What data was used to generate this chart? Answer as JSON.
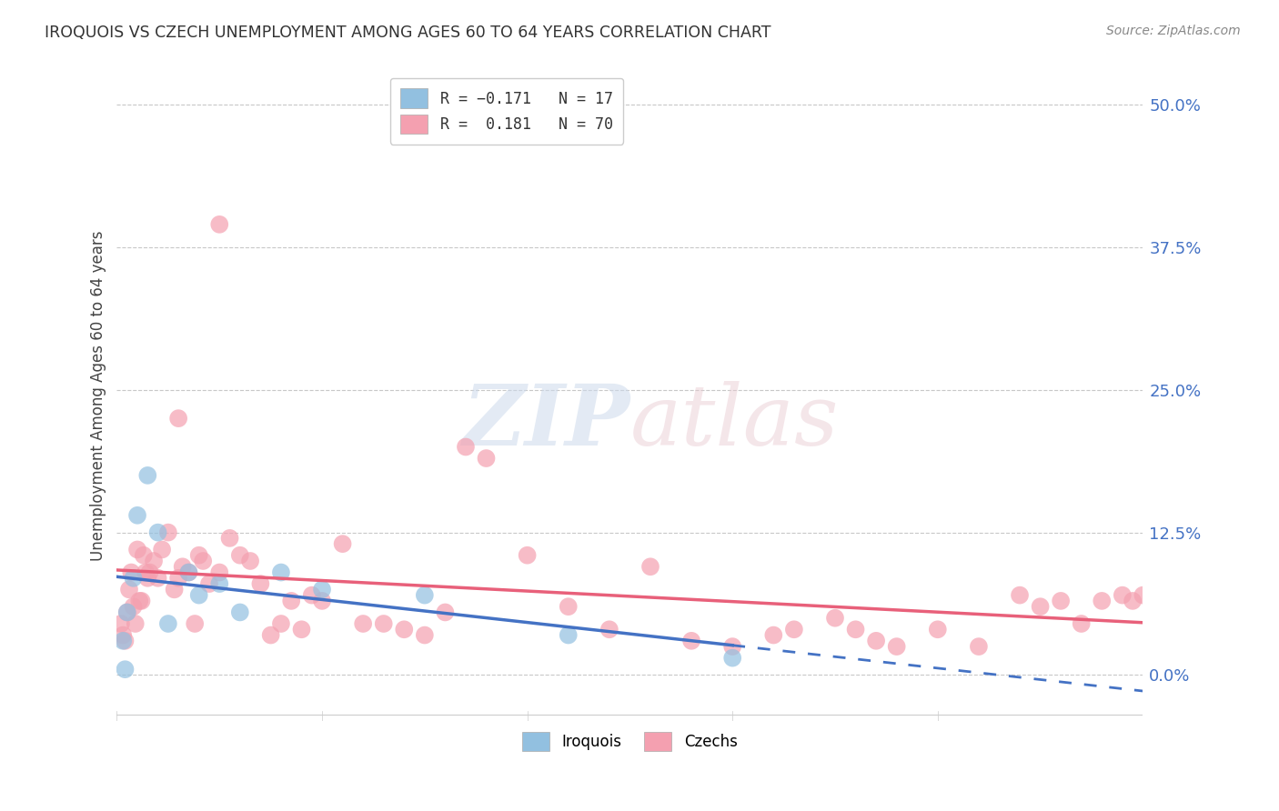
{
  "title": "IROQUOIS VS CZECH UNEMPLOYMENT AMONG AGES 60 TO 64 YEARS CORRELATION CHART",
  "source": "Source: ZipAtlas.com",
  "ylabel": "Unemployment Among Ages 60 to 64 years",
  "ytick_values": [
    0.0,
    12.5,
    25.0,
    37.5,
    50.0
  ],
  "xmin": 0.0,
  "xmax": 50.0,
  "ymin": -4.0,
  "ymax": 53.0,
  "watermark_zip": "ZIP",
  "watermark_atlas": "atlas",
  "iroquois_color": "#92c0e0",
  "czechs_color": "#f4a0b0",
  "iroquois_line_color": "#4472c4",
  "czechs_line_color": "#e8607a",
  "iroquois_x": [
    0.3,
    0.5,
    0.8,
    1.0,
    1.5,
    2.0,
    2.5,
    3.5,
    4.0,
    5.0,
    6.0,
    8.0,
    10.0,
    15.0,
    22.0,
    30.0,
    0.4
  ],
  "iroquois_y": [
    3.0,
    5.5,
    8.5,
    14.0,
    17.5,
    12.5,
    4.5,
    9.0,
    7.0,
    8.0,
    5.5,
    9.0,
    7.5,
    7.0,
    3.5,
    1.5,
    0.5
  ],
  "czechs_x": [
    0.2,
    0.3,
    0.4,
    0.5,
    0.6,
    0.7,
    0.8,
    0.9,
    1.0,
    1.1,
    1.2,
    1.3,
    1.4,
    1.5,
    1.6,
    1.8,
    2.0,
    2.2,
    2.5,
    2.8,
    3.0,
    3.2,
    3.5,
    3.8,
    4.0,
    4.2,
    4.5,
    5.0,
    5.5,
    6.0,
    6.5,
    7.0,
    7.5,
    8.0,
    8.5,
    9.0,
    9.5,
    10.0,
    11.0,
    12.0,
    13.0,
    14.0,
    15.0,
    16.0,
    17.0,
    18.0,
    20.0,
    22.0,
    24.0,
    26.0,
    28.0,
    30.0,
    32.0,
    33.0,
    35.0,
    36.0,
    37.0,
    38.0,
    40.0,
    42.0,
    44.0,
    45.0,
    46.0,
    47.0,
    48.0,
    49.0,
    49.5,
    50.0,
    3.0,
    5.0
  ],
  "czechs_y": [
    4.5,
    3.5,
    3.0,
    5.5,
    7.5,
    9.0,
    6.0,
    4.5,
    11.0,
    6.5,
    6.5,
    10.5,
    9.0,
    8.5,
    9.0,
    10.0,
    8.5,
    11.0,
    12.5,
    7.5,
    8.5,
    9.5,
    9.0,
    4.5,
    10.5,
    10.0,
    8.0,
    9.0,
    12.0,
    10.5,
    10.0,
    8.0,
    3.5,
    4.5,
    6.5,
    4.0,
    7.0,
    6.5,
    11.5,
    4.5,
    4.5,
    4.0,
    3.5,
    5.5,
    20.0,
    19.0,
    10.5,
    6.0,
    4.0,
    9.5,
    3.0,
    2.5,
    3.5,
    4.0,
    5.0,
    4.0,
    3.0,
    2.5,
    4.0,
    2.5,
    7.0,
    6.0,
    6.5,
    4.5,
    6.5,
    7.0,
    6.5,
    7.0,
    22.5,
    39.5
  ]
}
